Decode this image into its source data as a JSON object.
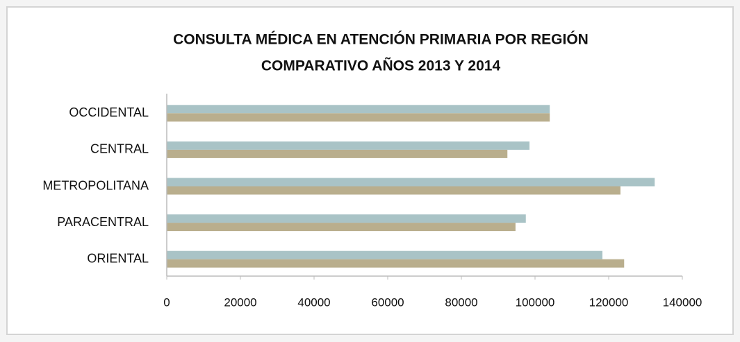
{
  "chart_data": {
    "type": "hbar",
    "title": "CONSULTA MÉDICA EN ATENCIÓN PRIMARIA POR REGIÓN",
    "subtitle": "COMPARATIVO AÑOS 2013 Y 2014",
    "categories": [
      "OCCIDENTAL",
      "CENTRAL",
      "METROPOLITANA",
      "PARACENTRAL",
      "ORIENTAL"
    ],
    "series": [
      {
        "color": "#a9c3c6",
        "values": [
          104000,
          98500,
          132500,
          97500,
          118300
        ]
      },
      {
        "color": "#b9ae8d",
        "values": [
          104000,
          92500,
          123200,
          94700,
          124200
        ]
      }
    ],
    "xlim": [
      0,
      140000
    ],
    "xticks": [
      0,
      20000,
      40000,
      60000,
      80000,
      100000,
      120000,
      140000
    ]
  }
}
